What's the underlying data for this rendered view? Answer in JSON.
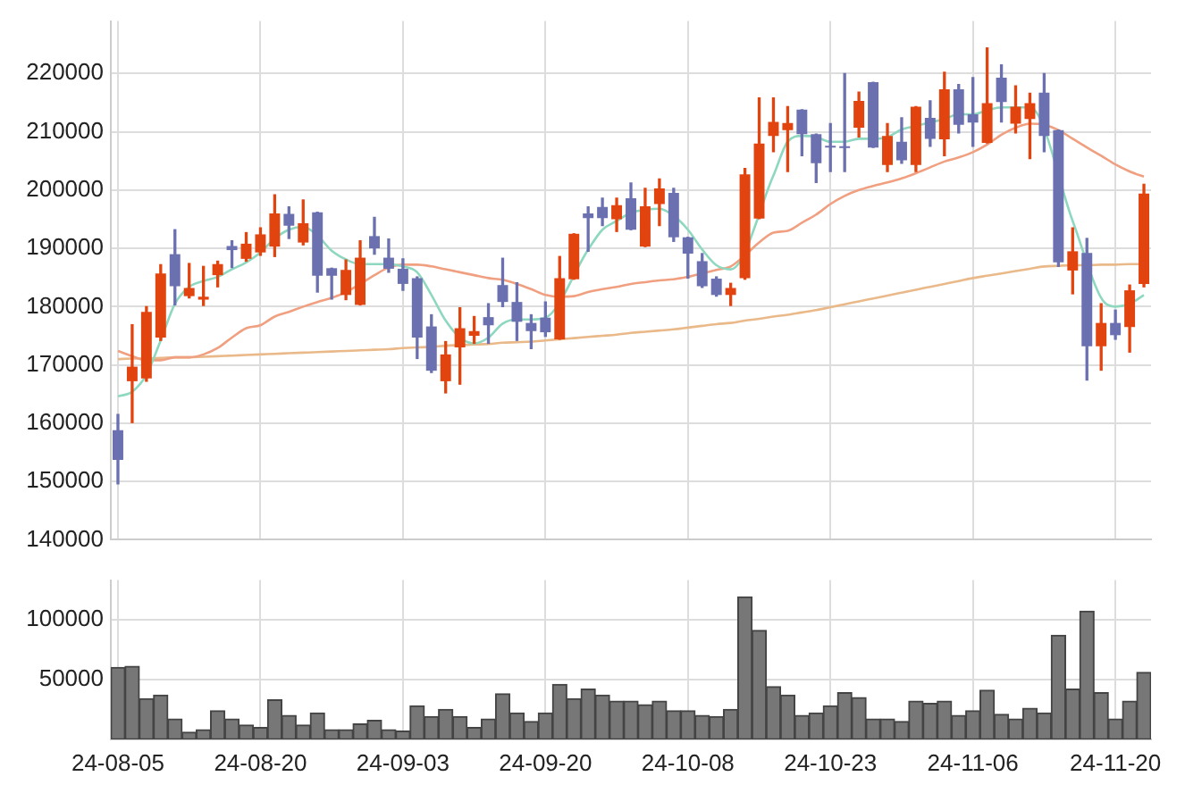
{
  "chart_data": [
    {
      "type": "candlestick",
      "categories": [
        null,
        null,
        null,
        null,
        null,
        null,
        null,
        null,
        null,
        null,
        null,
        null,
        null,
        null,
        null,
        null,
        null,
        null,
        null,
        null,
        null,
        null,
        null,
        null,
        null,
        null,
        null,
        null,
        null,
        null,
        null,
        null,
        null,
        null,
        null,
        null,
        null,
        null,
        null,
        null,
        null,
        null,
        null,
        null,
        null,
        null,
        null,
        null,
        null,
        null,
        null,
        null,
        null,
        null,
        null,
        null,
        null,
        null,
        null,
        null,
        null,
        null,
        null,
        null,
        null,
        null,
        null,
        null,
        null,
        null,
        null,
        null,
        null
      ],
      "ohlc": [
        [
          158800,
          161500,
          149600,
          153700
        ],
        [
          167200,
          176900,
          160100,
          169700
        ],
        [
          167700,
          180000,
          167200,
          179100
        ],
        [
          174700,
          187200,
          174200,
          185700
        ],
        [
          189000,
          193200,
          180300,
          183500
        ],
        [
          181800,
          187400,
          181500,
          183200
        ],
        [
          181200,
          186900,
          180200,
          181700
        ],
        [
          185400,
          187800,
          183400,
          187300
        ],
        [
          190400,
          191300,
          186700,
          189700
        ],
        [
          188200,
          192700,
          187800,
          190800
        ],
        [
          189300,
          193500,
          188800,
          192400
        ],
        [
          190300,
          199200,
          188600,
          196000
        ],
        [
          195900,
          197100,
          191700,
          193900
        ],
        [
          191000,
          198300,
          190600,
          194300
        ],
        [
          196200,
          196200,
          182500,
          185300
        ],
        [
          186600,
          186600,
          181300,
          185300
        ],
        [
          182000,
          188000,
          181200,
          186300
        ],
        [
          180300,
          191300,
          180300,
          188400
        ],
        [
          192100,
          195300,
          189000,
          190000
        ],
        [
          188400,
          191600,
          185900,
          186500
        ],
        [
          186500,
          188200,
          182800,
          183900
        ],
        [
          184900,
          185100,
          171100,
          174700
        ],
        [
          176600,
          178600,
          168700,
          169000
        ],
        [
          167200,
          174000,
          165200,
          171800
        ],
        [
          173000,
          179800,
          166700,
          176300
        ],
        [
          175000,
          178300,
          173700,
          175800
        ],
        [
          178200,
          180500,
          173700,
          176800
        ],
        [
          183700,
          188300,
          180000,
          180800
        ],
        [
          180800,
          184100,
          174200,
          177400
        ],
        [
          177200,
          178600,
          172800,
          175800
        ],
        [
          178100,
          180800,
          174900,
          175600
        ],
        [
          174400,
          188600,
          174400,
          184900
        ],
        [
          184700,
          192500,
          184700,
          192500
        ],
        [
          196000,
          197100,
          189500,
          195200
        ],
        [
          197100,
          198600,
          193900,
          195200
        ],
        [
          195000,
          198600,
          192900,
          197400
        ],
        [
          198600,
          201200,
          193200,
          193200
        ],
        [
          190300,
          200300,
          190300,
          197200
        ],
        [
          197600,
          201900,
          193900,
          200300
        ],
        [
          199500,
          200300,
          191200,
          191900
        ],
        [
          191900,
          191900,
          184900,
          189100
        ],
        [
          187800,
          189100,
          183300,
          183500
        ],
        [
          184800,
          185100,
          181800,
          182000
        ],
        [
          182000,
          184000,
          180200,
          183200
        ],
        [
          184900,
          203700,
          184700,
          202700
        ],
        [
          195100,
          215800,
          195100,
          208000
        ],
        [
          209300,
          215800,
          206600,
          211700
        ],
        [
          210300,
          214300,
          203200,
          211500
        ],
        [
          213800,
          213800,
          205900,
          209600
        ],
        [
          209600,
          209600,
          201300,
          204600
        ],
        [
          207400,
          211400,
          203200,
          207300
        ],
        [
          207300,
          220000,
          203200,
          207200
        ],
        [
          210700,
          216800,
          209100,
          215300
        ],
        [
          218500,
          218500,
          207300,
          207300
        ],
        [
          204300,
          211400,
          203200,
          209300
        ],
        [
          208300,
          212400,
          204600,
          205100
        ],
        [
          204300,
          214300,
          203200,
          214300
        ],
        [
          212400,
          215300,
          207500,
          208800
        ],
        [
          208700,
          220200,
          205900,
          217300
        ],
        [
          217300,
          218100,
          209800,
          211200
        ],
        [
          213000,
          219300,
          207500,
          211600
        ],
        [
          208100,
          224400,
          208100,
          214900
        ],
        [
          219300,
          221500,
          211700,
          215100
        ],
        [
          211400,
          217900,
          209800,
          214300
        ],
        [
          212200,
          216600,
          205400,
          214900
        ],
        [
          216700,
          220000,
          206600,
          209300
        ],
        [
          210300,
          210300,
          186900,
          187600
        ],
        [
          186200,
          193500,
          182200,
          189500
        ],
        [
          189200,
          191700,
          167400,
          173200
        ],
        [
          173200,
          180500,
          169100,
          177200
        ],
        [
          177200,
          179400,
          174400,
          175100
        ],
        [
          176500,
          183700,
          172200,
          182800
        ],
        [
          183900,
          201000,
          183400,
          199400
        ]
      ],
      "colors": [
        "#6b70b0",
        "#e2440f",
        "#e2440f",
        "#e2440f",
        "#6b70b0",
        "#e2440f",
        "#e2440f",
        "#e2440f",
        "#6b70b0",
        "#e2440f",
        "#e2440f",
        "#e2440f",
        "#6b70b0",
        "#e2440f",
        "#6b70b0",
        "#6b70b0",
        "#e2440f",
        "#e2440f",
        "#6b70b0",
        "#6b70b0",
        "#6b70b0",
        "#6b70b0",
        "#6b70b0",
        "#e2440f",
        "#e2440f",
        "#e2440f",
        "#6b70b0",
        "#6b70b0",
        "#6b70b0",
        "#6b70b0",
        "#6b70b0",
        "#e2440f",
        "#e2440f",
        "#6b70b0",
        "#6b70b0",
        "#e2440f",
        "#6b70b0",
        "#e2440f",
        "#e2440f",
        "#6b70b0",
        "#6b70b0",
        "#6b70b0",
        "#6b70b0",
        "#e2440f",
        "#e2440f",
        "#e2440f",
        "#e2440f",
        "#e2440f",
        "#6b70b0",
        "#6b70b0",
        "#6b70b0",
        "#6b70b0",
        "#e2440f",
        "#6b70b0",
        "#e2440f",
        "#6b70b0",
        "#e2440f",
        "#6b70b0",
        "#e2440f",
        "#6b70b0",
        "#6b70b0",
        "#e2440f",
        "#6b70b0",
        "#e2440f",
        "#e2440f",
        "#6b70b0",
        "#6b70b0",
        "#e2440f",
        "#6b70b0",
        "#e2440f",
        "#6b70b0",
        "#e2440f",
        "#e2440f"
      ],
      "series": [
        {
          "type": "line",
          "color": "#8ed8c0",
          "values": [
            164600,
            165400,
            168300,
            174200,
            180500,
            183400,
            184400,
            185100,
            186400,
            187600,
            189300,
            191700,
            193200,
            193700,
            192200,
            189600,
            188100,
            187300,
            187300,
            187300,
            186900,
            185900,
            182000,
            177600,
            174700,
            173700,
            174700,
            177100,
            177800,
            177800,
            178100,
            null,
            null,
            189800,
            193200,
            194700,
            196100,
            196600,
            196800,
            195600,
            193200,
            189800,
            187100,
            186400,
            null,
            null,
            202500,
            208300,
            209300,
            209100,
            208300,
            208300,
            208800,
            208800,
            209100,
            210400,
            211000,
            211600,
            212200,
            213000,
            213000,
            213700,
            214200,
            214200,
            214200,
            null,
            null,
            194700,
            null,
            181500,
            180000,
            180500,
            182000
          ]
        },
        {
          "type": "line",
          "color": "#f0a080",
          "values": [
            172400,
            171500,
            170800,
            170800,
            171300,
            171300,
            171800,
            172900,
            174700,
            176300,
            176800,
            178300,
            179100,
            180000,
            180800,
            181500,
            182500,
            183900,
            185400,
            186700,
            187200,
            187200,
            186900,
            186400,
            185900,
            185400,
            184900,
            184600,
            183900,
            183000,
            182000,
            181700,
            181800,
            182500,
            183000,
            183400,
            183900,
            184200,
            184500,
            184700,
            185100,
            185700,
            186300,
            186900,
            188800,
            191000,
            192700,
            193000,
            194400,
            195800,
            197600,
            199000,
            200000,
            200700,
            201300,
            202000,
            202900,
            203900,
            204900,
            205600,
            206500,
            207800,
            209500,
            210700,
            211400,
            211200,
            210300,
            208800,
            207300,
            205900,
            204400,
            203200,
            202300
          ]
        },
        {
          "type": "line",
          "color": "#eab98a",
          "values": [
            171000,
            171100,
            171100,
            171200,
            171300,
            171300,
            171400,
            171500,
            171600,
            171700,
            171800,
            171900,
            172000,
            172100,
            172200,
            172300,
            172400,
            172500,
            172600,
            172700,
            172900,
            173000,
            173100,
            173300,
            173400,
            173500,
            173600,
            173800,
            173900,
            174000,
            174200,
            174400,
            174600,
            174800,
            175000,
            175200,
            175500,
            175700,
            175900,
            176100,
            176400,
            176700,
            177000,
            177200,
            177600,
            177900,
            178300,
            178600,
            179000,
            179400,
            179900,
            180400,
            180900,
            181400,
            181900,
            182400,
            182900,
            183400,
            183900,
            184400,
            184900,
            185300,
            185700,
            186100,
            186500,
            186900,
            187000,
            187100,
            187100,
            187200,
            187200,
            187300,
            187300
          ]
        }
      ],
      "ylim": [
        140000,
        229000
      ],
      "yticks": [
        140000,
        150000,
        160000,
        170000,
        180000,
        190000,
        200000,
        210000,
        220000
      ],
      "grid": true,
      "tick_labels": "y"
    },
    {
      "type": "bar",
      "categories": [
        "24-08-05",
        null,
        null,
        null,
        null,
        null,
        null,
        null,
        null,
        null,
        "24-08-20",
        null,
        null,
        null,
        null,
        null,
        null,
        null,
        null,
        null,
        "24-09-03",
        null,
        null,
        null,
        null,
        null,
        null,
        null,
        null,
        null,
        "24-09-20",
        null,
        null,
        null,
        null,
        null,
        null,
        null,
        null,
        null,
        "24-10-08",
        null,
        null,
        null,
        null,
        null,
        null,
        null,
        null,
        null,
        "24-10-23",
        null,
        null,
        null,
        null,
        null,
        null,
        null,
        null,
        null,
        "24-11-06",
        null,
        null,
        null,
        null,
        null,
        null,
        null,
        null,
        null,
        "24-11-20",
        null,
        null
      ],
      "values": [
        60000,
        61000,
        34000,
        37000,
        17000,
        6000,
        8000,
        24000,
        17000,
        12000,
        10000,
        33000,
        20000,
        12000,
        22000,
        8000,
        8000,
        13000,
        16000,
        8000,
        7000,
        28000,
        19000,
        25000,
        19000,
        10000,
        17000,
        38000,
        22000,
        15000,
        22000,
        46000,
        34000,
        42000,
        37000,
        32000,
        32000,
        29000,
        32000,
        24000,
        24000,
        20000,
        19000,
        25000,
        119000,
        91000,
        44000,
        37000,
        20000,
        22000,
        28000,
        39000,
        35000,
        17000,
        17000,
        15000,
        32000,
        30000,
        32000,
        20000,
        24000,
        41000,
        21000,
        17000,
        26000,
        22000,
        87000,
        42000,
        107000,
        39000,
        17000,
        32000,
        56000
      ],
      "color": "#777777",
      "ylim": [
        0,
        133000
      ],
      "yticks": [
        50000,
        100000
      ],
      "grid": true
    }
  ]
}
